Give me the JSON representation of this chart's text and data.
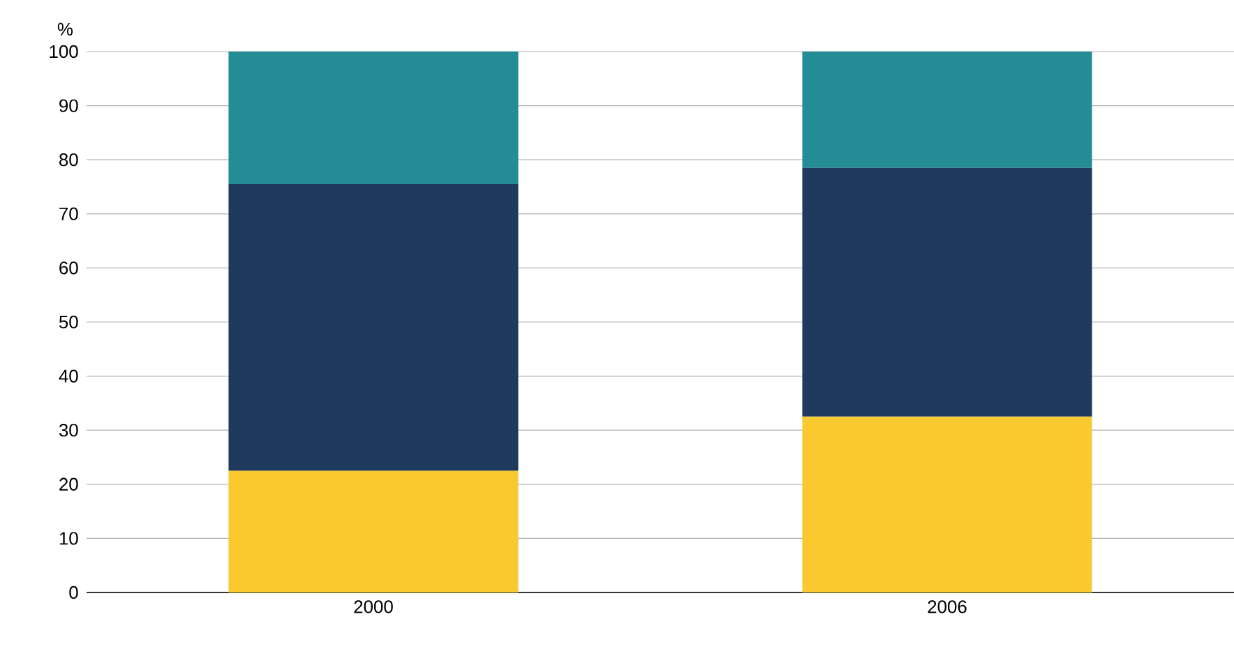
{
  "chart_data": {
    "type": "bar",
    "stacked": true,
    "ylabel": "%",
    "categories": [
      "2000",
      "2006"
    ],
    "series": [
      {
        "color": "#f8ca2f",
        "values": [
          22.5,
          32.5
        ]
      },
      {
        "color": "#1f3a5c",
        "values": [
          53,
          46
        ]
      },
      {
        "color": "#238c94",
        "values": [
          24.5,
          21.5
        ]
      }
    ],
    "ylim": [
      0,
      100
    ],
    "yticks": [
      0,
      10,
      20,
      30,
      40,
      50,
      60,
      70,
      80,
      90,
      100
    ],
    "grid": "y"
  }
}
